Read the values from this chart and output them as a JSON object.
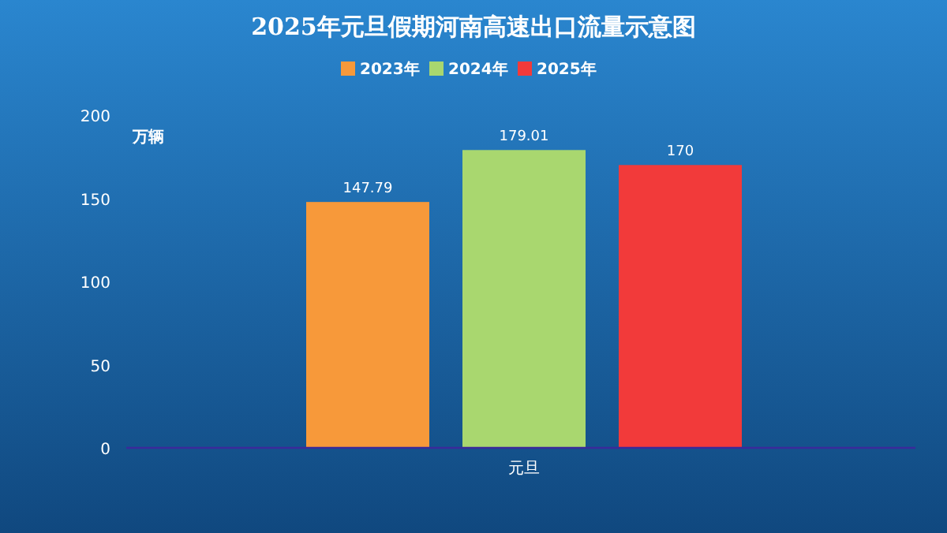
{
  "chart_data": {
    "type": "bar",
    "title": "2025年元旦假期河南高速出口流量示意图",
    "ylabel": "万辆",
    "categories": [
      "元旦"
    ],
    "series": [
      {
        "name": "2023年",
        "color": "#f7993a",
        "values": [
          147.79
        ]
      },
      {
        "name": "2024年",
        "color": "#a9d76f",
        "values": [
          179.01
        ]
      },
      {
        "name": "2025年",
        "color": "#f23a3a",
        "values": [
          170
        ]
      }
    ],
    "ylim": [
      0,
      200
    ],
    "yticks": [
      0,
      50,
      100,
      150,
      200
    ],
    "legend": "top",
    "data_labels": true
  }
}
